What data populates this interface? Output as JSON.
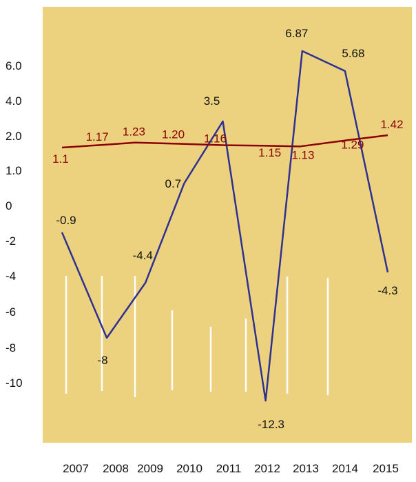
{
  "chart_data": {
    "type": "line",
    "title": "",
    "xlabel": "",
    "ylabel": "",
    "categories": [
      "2007",
      "2008",
      "2009",
      "2010",
      "2011",
      "2012",
      "2013",
      "2014",
      "2015"
    ],
    "y_tick_labels": [
      "6.0",
      "4.0",
      "2.0",
      "1.0",
      "0",
      "-2",
      "-4",
      "-6",
      "-8",
      "-10"
    ],
    "series": [
      {
        "color": "#2e3192",
        "points": [
          {
            "x": 2007.0,
            "y": -0.9,
            "label": "-0.9"
          },
          {
            "x": 2008.1,
            "y": -8,
            "label": "-8"
          },
          {
            "x": 2009.05,
            "y": -4.4,
            "label": "-4.4"
          },
          {
            "x": 2010.0,
            "y": 0.7,
            "label": "0.7"
          },
          {
            "x": 2010.95,
            "y": 3.5,
            "label": "3.5"
          },
          {
            "x": 2012.0,
            "y": -12.3,
            "label": "-12.3"
          },
          {
            "x": 2012.9,
            "y": 6.87,
            "label": "6.87"
          },
          {
            "x": 2013.95,
            "y": 5.68,
            "label": "5.68"
          },
          {
            "x": 2015.0,
            "y": -4.3,
            "label": "-4.3"
          }
        ]
      },
      {
        "color": "#8b0000",
        "points": [
          {
            "x": 2007.0,
            "y": 1.1,
            "label": "1.1"
          },
          {
            "x": 2008.0,
            "y": 1.17,
            "label": "1.17"
          },
          {
            "x": 2008.8,
            "y": 1.23,
            "label": "1.23"
          },
          {
            "x": 2009.8,
            "y": 1.2,
            "label": "1.20"
          },
          {
            "x": 2011.0,
            "y": 1.16,
            "label": "1.16"
          },
          {
            "x": 2011.9,
            "y": 1.15,
            "label": "1.15"
          },
          {
            "x": 2012.85,
            "y": 1.13,
            "label": "1.13"
          },
          {
            "x": 2014.0,
            "y": 1.29,
            "label": "1.29"
          },
          {
            "x": 2015.0,
            "y": 1.42,
            "label": "1.42"
          }
        ]
      }
    ],
    "grid": false,
    "legend": "none",
    "background_color": "#ecd17f",
    "decor_line_color": "#ffffff"
  }
}
